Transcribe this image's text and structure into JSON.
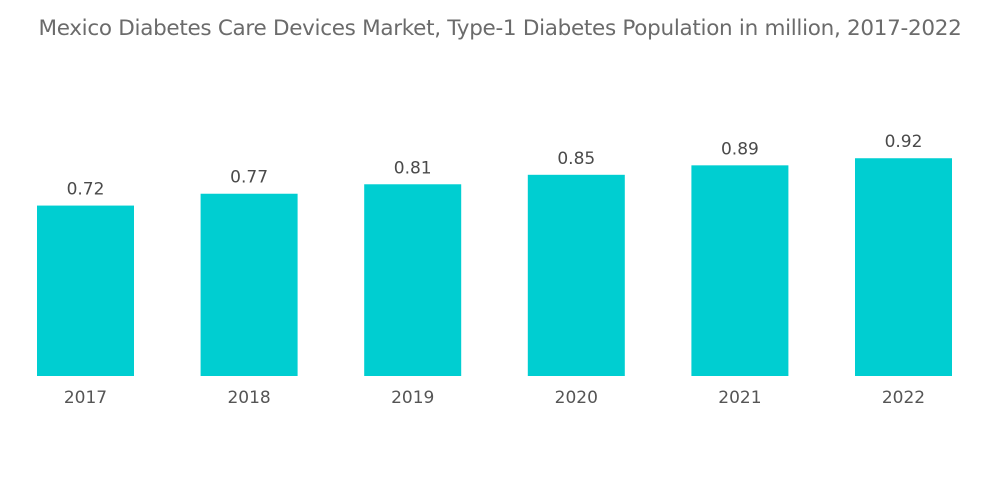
{
  "chart_data": {
    "type": "bar",
    "title": "Mexico Diabetes Care Devices Market, Type-1 Diabetes Population in million, 2017-2022",
    "categories": [
      "2017",
      "2018",
      "2019",
      "2020",
      "2021",
      "2022"
    ],
    "values": [
      0.72,
      0.77,
      0.81,
      0.85,
      0.89,
      0.92
    ],
    "value_labels": [
      "0.72",
      "0.77",
      "0.81",
      "0.85",
      "0.89",
      "0.92"
    ],
    "xlabel": "",
    "ylabel": "",
    "ylim": [
      0,
      1.0
    ],
    "grid": false,
    "legend": "none",
    "bar_color": "#00ced1"
  }
}
